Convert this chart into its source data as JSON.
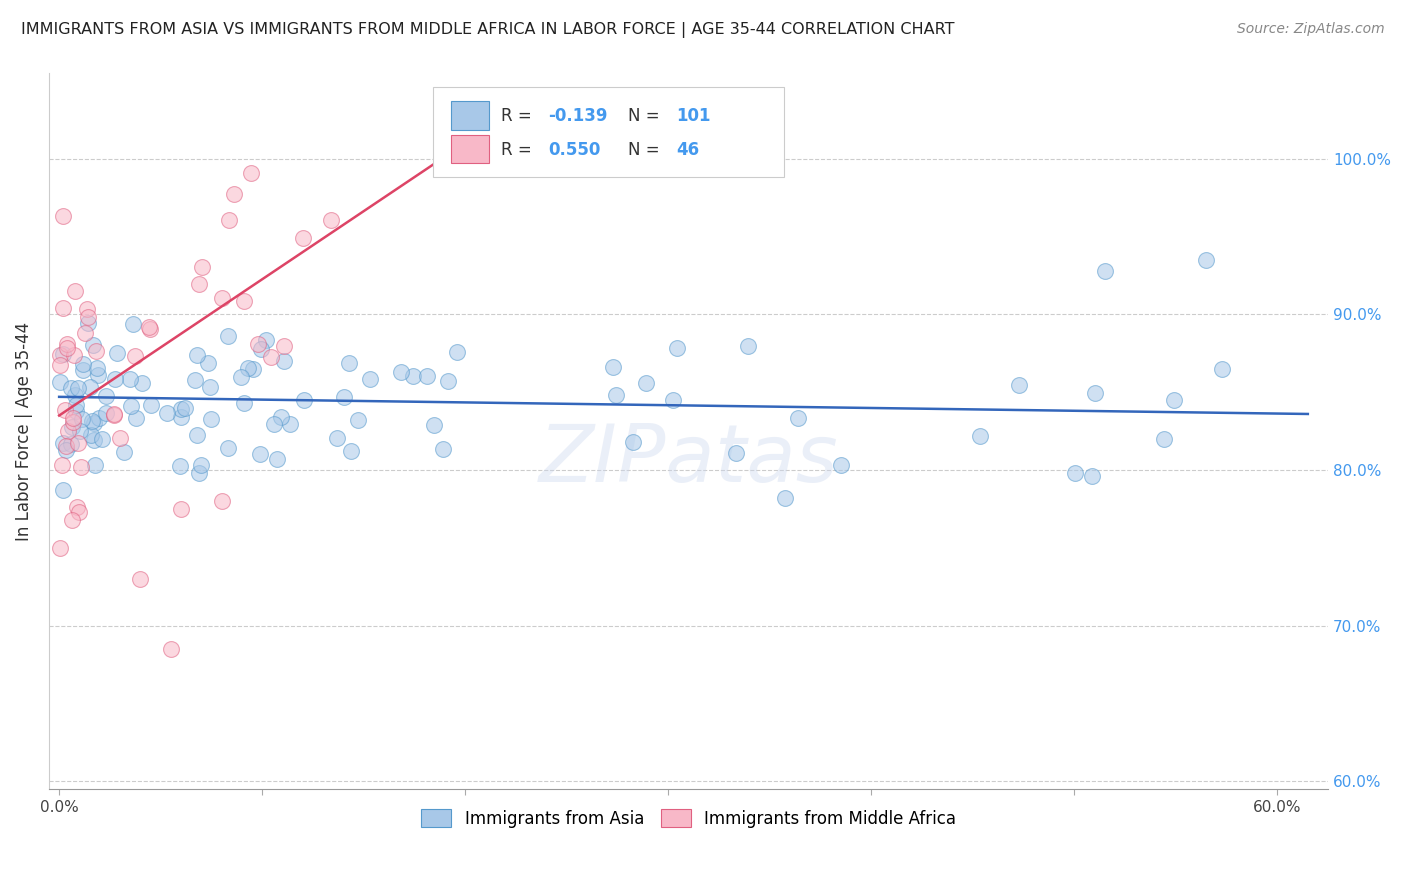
{
  "title": "IMMIGRANTS FROM ASIA VS IMMIGRANTS FROM MIDDLE AFRICA IN LABOR FORCE | AGE 35-44 CORRELATION CHART",
  "source": "Source: ZipAtlas.com",
  "ylabel": "In Labor Force | Age 35-44",
  "xlim": [
    -0.005,
    0.625
  ],
  "ylim": [
    0.595,
    1.055
  ],
  "xtick_positions": [
    0.0,
    0.1,
    0.2,
    0.3,
    0.4,
    0.5,
    0.6
  ],
  "xtick_labels": [
    "0.0%",
    "",
    "",
    "",
    "",
    "",
    "60.0%"
  ],
  "ytick_positions": [
    0.6,
    0.7,
    0.8,
    0.9,
    1.0
  ],
  "ytick_labels": [
    "60.0%",
    "70.0%",
    "80.0%",
    "90.0%",
    "100.0%"
  ],
  "blue_R": "-0.139",
  "blue_N": "101",
  "pink_R": "0.550",
  "pink_N": "46",
  "blue_fill": "#a8c8e8",
  "blue_edge": "#5599cc",
  "pink_fill": "#f8b8c8",
  "pink_edge": "#e06080",
  "blue_line_color": "#3366bb",
  "pink_line_color": "#dd4466",
  "watermark": "ZIPatas",
  "legend_label_blue": "Immigrants from Asia",
  "legend_label_pink": "Immigrants from Middle Africa",
  "blue_line_x0": 0.0,
  "blue_line_x1": 0.615,
  "blue_line_y0": 0.847,
  "blue_line_y1": 0.836,
  "pink_line_x0": 0.0,
  "pink_line_x1": 0.2,
  "pink_line_y0": 0.835,
  "pink_line_y1": 1.01
}
